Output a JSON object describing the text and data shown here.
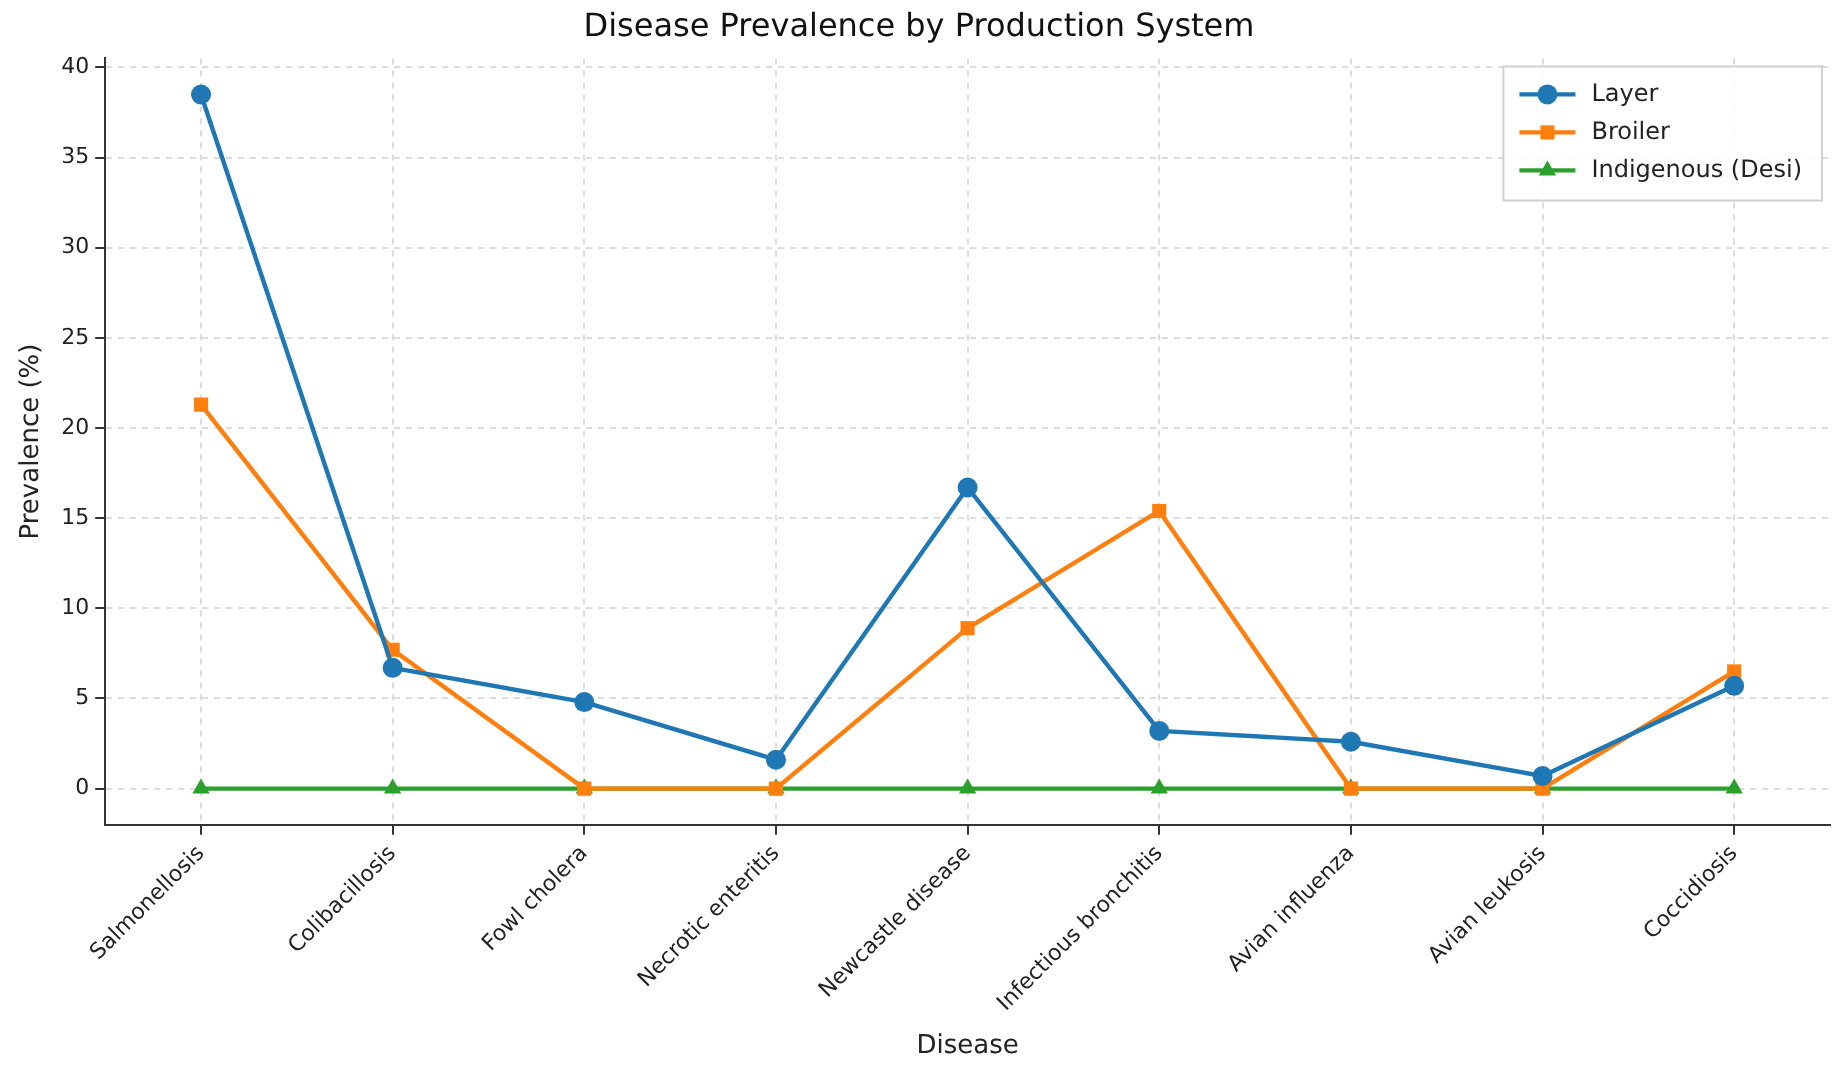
{
  "chart_data": {
    "type": "line",
    "title": "Disease Prevalence by Production System",
    "xlabel": "Disease",
    "ylabel": "Prevalence (%)",
    "categories": [
      "Salmonellosis",
      "Colibacillosis",
      "Fowl cholera",
      "Necrotic enteritis",
      "Newcastle disease",
      "Infectious bronchitis",
      "Avian influenza",
      "Avian leukosis",
      "Coccidiosis"
    ],
    "series": [
      {
        "name": "Layer",
        "color": "#1f77b4",
        "marker": "circle",
        "values": [
          38.5,
          6.7,
          4.8,
          1.6,
          16.7,
          3.2,
          2.6,
          0.7,
          5.7
        ]
      },
      {
        "name": "Broiler",
        "color": "#ff7f0e",
        "marker": "square",
        "values": [
          21.3,
          7.7,
          0,
          0,
          8.9,
          15.4,
          0,
          0,
          6.5
        ]
      },
      {
        "name": "Indigenous (Desi)",
        "color": "#2ca02c",
        "marker": "triangle",
        "values": [
          0,
          0,
          0,
          0,
          0,
          0,
          0,
          0,
          0
        ]
      }
    ],
    "ylim": [
      -2,
      40.5
    ],
    "yticks": [
      0,
      5,
      10,
      15,
      20,
      25,
      30,
      35,
      40
    ],
    "grid": true,
    "legend": "top right",
    "line_style": "solid"
  }
}
